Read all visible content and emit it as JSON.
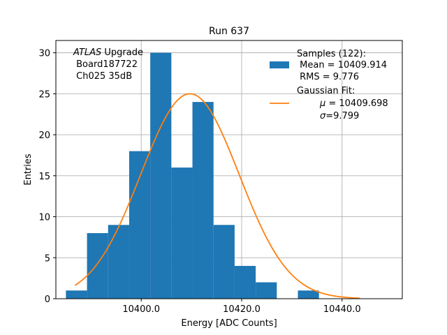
{
  "chart_data": {
    "type": "histogram",
    "title": "Run 637",
    "xlabel": "Energy [ADC Counts]",
    "ylabel": "Entries",
    "xlim": [
      10383.0,
      10452.0
    ],
    "ylim": [
      0,
      31.5
    ],
    "xticks": [
      10400.0,
      10420.0,
      10440.0
    ],
    "xtick_labels": [
      "10400.0",
      "10420.0",
      "10440.0"
    ],
    "yticks": [
      0,
      5,
      10,
      15,
      20,
      25,
      30
    ],
    "ytick_labels": [
      "0",
      "5",
      "10",
      "15",
      "20",
      "25",
      "30"
    ],
    "grid": true,
    "bin_width": 4.2,
    "bins": [
      {
        "x0": 10385.0,
        "count": 1
      },
      {
        "x0": 10389.2,
        "count": 8
      },
      {
        "x0": 10393.4,
        "count": 9
      },
      {
        "x0": 10397.6,
        "count": 18
      },
      {
        "x0": 10401.8,
        "count": 30
      },
      {
        "x0": 10406.0,
        "count": 16
      },
      {
        "x0": 10410.2,
        "count": 24
      },
      {
        "x0": 10414.4,
        "count": 9
      },
      {
        "x0": 10418.6,
        "count": 4
      },
      {
        "x0": 10422.8,
        "count": 2
      },
      {
        "x0": 10427.0,
        "count": 0
      },
      {
        "x0": 10431.2,
        "count": 1
      }
    ],
    "fit": {
      "amplitude": 25,
      "mu": 10409.698,
      "sigma": 9.799,
      "x_start": 10386.8,
      "x_end": 10443.5
    },
    "colors": {
      "bars": "#1f77b4",
      "fit_line": "#ff7f0e",
      "grid": "#b0b0b0"
    },
    "annotation": {
      "italic": "ATLAS",
      "line1_rest": " Upgrade",
      "line2": " Board187722",
      "line3": " Ch025 35dB"
    },
    "legend": {
      "position": "upper right",
      "samples_label": "Samples (122):",
      "samples_mean": " Mean = 10409.914",
      "samples_rms": " RMS = 9.776",
      "fit_label": "Gaussian Fit:",
      "fit_mu_symbol": "μ",
      "fit_mu_value": " = 10409.698",
      "fit_sigma_symbol": "σ",
      "fit_sigma_value": "=9.799"
    }
  }
}
